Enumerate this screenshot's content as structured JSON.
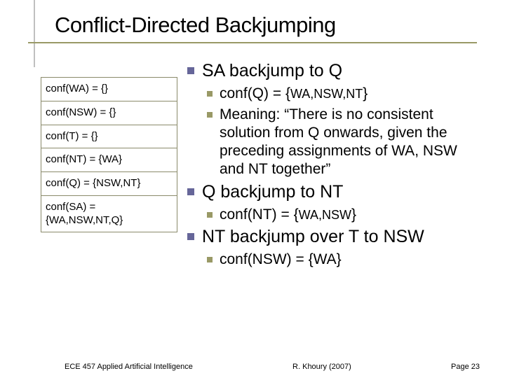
{
  "title": "Conflict-Directed Backjumping",
  "table_rows": [
    "conf(WA) = {}",
    "conf(NSW) = {}",
    "conf(T) = {}",
    "conf(NT) = {WA}",
    "conf(Q) = {NSW,NT}",
    "conf(SA) = {WA,NSW,NT,Q}"
  ],
  "bullets": {
    "b1": "SA backjump to Q",
    "b1_1_pre": "conf(Q) = {",
    "b1_1_sub": "WA,NSW,NT",
    "b1_1_post": "}",
    "b1_2": "Meaning: “There is no consistent solution from Q onwards, given the preceding assignments of WA, NSW and NT together”",
    "b2": "Q backjump to NT",
    "b2_1_pre": "conf(NT) = {",
    "b2_1_sub": "WA,NSW",
    "b2_1_post": "}",
    "b3": "NT backjump over T to NSW",
    "b3_1": "conf(NSW) = {WA}"
  },
  "footer": {
    "left": "ECE 457 Applied Artificial Intelligence",
    "center": "R. Khoury (2007)",
    "right": "Page 23"
  },
  "colors": {
    "title_rule": "#999966",
    "title_vert": "#c0c0c0",
    "lvl1_bullet": "#666699",
    "lvl2_bullet": "#999966",
    "table_border": "#8a8a6a"
  }
}
